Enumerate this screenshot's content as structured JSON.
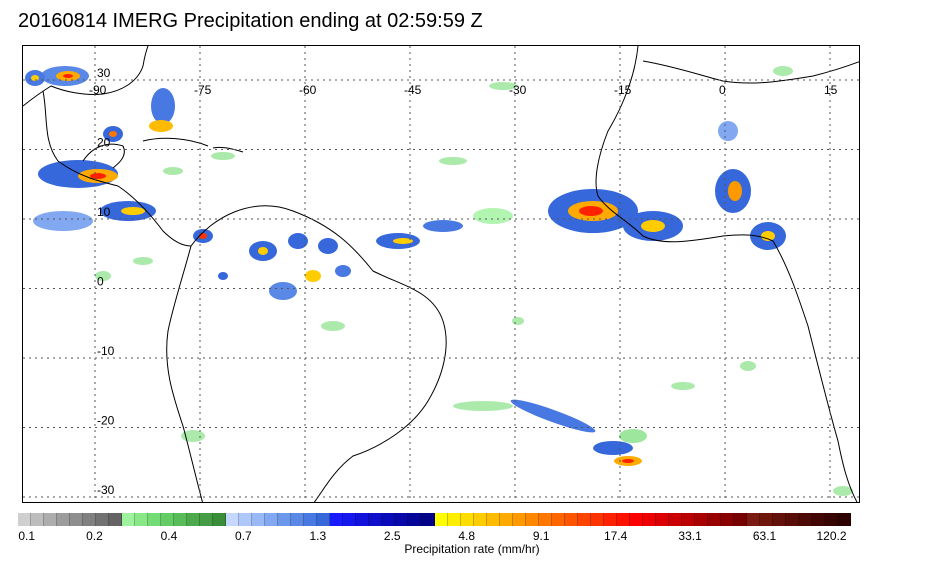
{
  "title": "20160814 IMERG Precipitation ending at 02:59:59 Z",
  "map": {
    "lon_labels": [
      "-90",
      "-75",
      "-60",
      "-45",
      "-30",
      "-15",
      "0",
      "15"
    ],
    "lat_labels": [
      "30",
      "20",
      "10",
      "0",
      "-10",
      "-20",
      "-30"
    ]
  },
  "colorbar": {
    "title": "Precipitation rate (mm/hr)",
    "labels": [
      "0.1",
      "0.2",
      "0.4",
      "0.7",
      "1.3",
      "2.5",
      "4.8",
      "9.1",
      "17.4",
      "33.1",
      "63.1",
      "120.2"
    ],
    "colors": [
      "#cfcfcf",
      "#bdbdbd",
      "#adadad",
      "#9c9c9c",
      "#8e8e8e",
      "#808080",
      "#727272",
      "#646464",
      "#9ef29e",
      "#88e888",
      "#74dc74",
      "#64cc64",
      "#58bc58",
      "#4caa4c",
      "#449c44",
      "#3a8e3a",
      "#c6d8ff",
      "#afc8fb",
      "#98b8f6",
      "#82a8f1",
      "#6c98ec",
      "#5a88e7",
      "#4878e2",
      "#3668dc",
      "#1a1aff",
      "#1616ee",
      "#1212dd",
      "#0e0ecc",
      "#0a0abb",
      "#0707aa",
      "#050599",
      "#030388",
      "#ffff00",
      "#ffee00",
      "#ffdd00",
      "#ffcc00",
      "#ffbb00",
      "#ffaa00",
      "#ff9900",
      "#ff8800",
      "#ff7700",
      "#ff6600",
      "#ff5500",
      "#ff4400",
      "#ff3300",
      "#ff2200",
      "#ff1100",
      "#ff0000",
      "#ee0000",
      "#dd0000",
      "#cc0000",
      "#bb0000",
      "#aa0000",
      "#990000",
      "#880000",
      "#770000",
      "#7a1a10",
      "#6e150c",
      "#63110a",
      "#580d08",
      "#4d0a06",
      "#420704",
      "#380402",
      "#2e0101"
    ]
  }
}
